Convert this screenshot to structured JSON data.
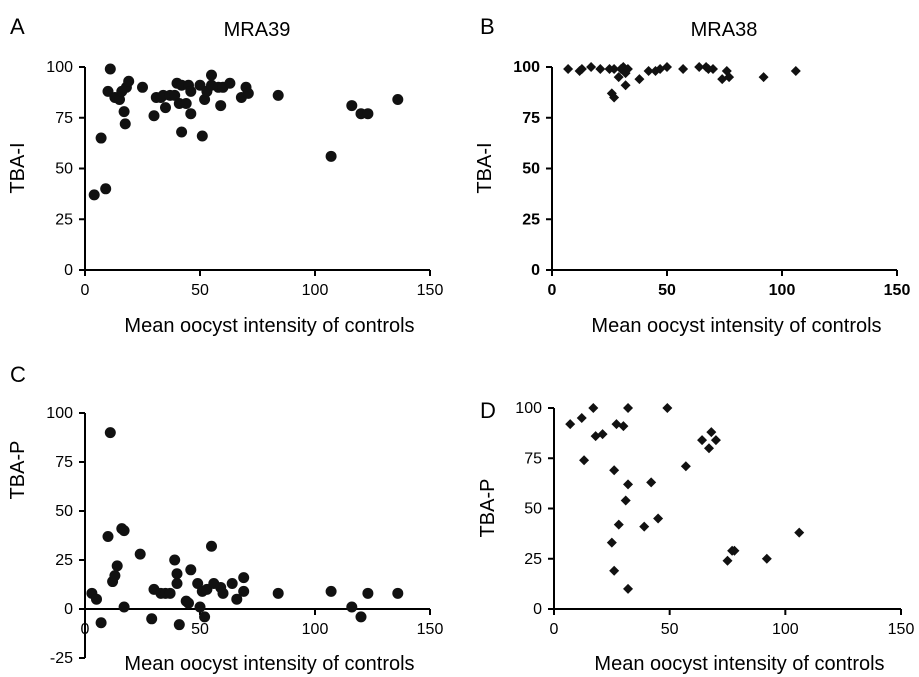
{
  "chart_data": [
    {
      "panel": "A",
      "title": "MRA39",
      "type": "scatter",
      "marker": "circle",
      "xlabel": "Mean oocyst intensity of controls",
      "ylabel": "TBA-I",
      "xlim": [
        0,
        150
      ],
      "ylim": [
        0,
        100
      ],
      "xticks": [
        0,
        50,
        100,
        150
      ],
      "yticks": [
        0,
        25,
        50,
        75,
        100
      ],
      "tick_bold": false,
      "points": [
        [
          4,
          37
        ],
        [
          7,
          65
        ],
        [
          9,
          40
        ],
        [
          10,
          88
        ],
        [
          11,
          99
        ],
        [
          13,
          85
        ],
        [
          15,
          84
        ],
        [
          16,
          88
        ],
        [
          17,
          78
        ],
        [
          17.5,
          72
        ],
        [
          18,
          90
        ],
        [
          19,
          93
        ],
        [
          25,
          90
        ],
        [
          30,
          76
        ],
        [
          31,
          85
        ],
        [
          33,
          85
        ],
        [
          34,
          86
        ],
        [
          35,
          80
        ],
        [
          37,
          86
        ],
        [
          39,
          86
        ],
        [
          40,
          92
        ],
        [
          41,
          82
        ],
        [
          42,
          91
        ],
        [
          42,
          68
        ],
        [
          44,
          82
        ],
        [
          45,
          91
        ],
        [
          46,
          77
        ],
        [
          46,
          88
        ],
        [
          50,
          91
        ],
        [
          51,
          66
        ],
        [
          52,
          84
        ],
        [
          53,
          88
        ],
        [
          55,
          91
        ],
        [
          55,
          96
        ],
        [
          58,
          90
        ],
        [
          59,
          81
        ],
        [
          60,
          90
        ],
        [
          63,
          92
        ],
        [
          68,
          85
        ],
        [
          70,
          90
        ],
        [
          71,
          87
        ],
        [
          84,
          86
        ],
        [
          107,
          56
        ],
        [
          116,
          81
        ],
        [
          120,
          77
        ],
        [
          123,
          77
        ],
        [
          136,
          84
        ]
      ]
    },
    {
      "panel": "B",
      "title": "MRA38",
      "type": "scatter",
      "marker": "diamond",
      "xlabel": "Mean oocyst intensity of controls",
      "ylabel": "TBA-I",
      "xlim": [
        0,
        150
      ],
      "ylim": [
        0,
        100
      ],
      "xticks": [
        0,
        50,
        100,
        150
      ],
      "yticks": [
        0,
        25,
        50,
        75,
        100
      ],
      "tick_bold": true,
      "points": [
        [
          7,
          99
        ],
        [
          12,
          98
        ],
        [
          13,
          99
        ],
        [
          17,
          100
        ],
        [
          21,
          99
        ],
        [
          25,
          99
        ],
        [
          26,
          87
        ],
        [
          27,
          85
        ],
        [
          27,
          99
        ],
        [
          29,
          95
        ],
        [
          30,
          99
        ],
        [
          31,
          100
        ],
        [
          32,
          97
        ],
        [
          32,
          91
        ],
        [
          33,
          99
        ],
        [
          38,
          94
        ],
        [
          42,
          98
        ],
        [
          45,
          98
        ],
        [
          47,
          99
        ],
        [
          50,
          100
        ],
        [
          57,
          99
        ],
        [
          64,
          100
        ],
        [
          67,
          100
        ],
        [
          68,
          99
        ],
        [
          70,
          99
        ],
        [
          74,
          94
        ],
        [
          76,
          98
        ],
        [
          77,
          95
        ],
        [
          92,
          95
        ],
        [
          106,
          98
        ]
      ]
    },
    {
      "panel": "C",
      "title": "",
      "type": "scatter",
      "marker": "circle",
      "xlabel": "Mean oocyst intensity of controls",
      "ylabel": "TBA-P",
      "xlim": [
        0,
        150
      ],
      "ylim": [
        -25,
        100
      ],
      "xticks": [
        0,
        50,
        100,
        150
      ],
      "yticks": [
        -25,
        0,
        25,
        50,
        75,
        100
      ],
      "tick_bold": false,
      "points": [
        [
          3,
          8
        ],
        [
          5,
          5
        ],
        [
          7,
          -7
        ],
        [
          10,
          37
        ],
        [
          11,
          90
        ],
        [
          12,
          14
        ],
        [
          13,
          17
        ],
        [
          14,
          22
        ],
        [
          16,
          41
        ],
        [
          17,
          40
        ],
        [
          17,
          1
        ],
        [
          24,
          28
        ],
        [
          29,
          -5
        ],
        [
          30,
          10
        ],
        [
          33,
          8
        ],
        [
          35,
          8
        ],
        [
          37,
          8
        ],
        [
          39,
          25
        ],
        [
          40,
          18
        ],
        [
          40,
          13
        ],
        [
          41,
          -8
        ],
        [
          44,
          4
        ],
        [
          45,
          3
        ],
        [
          46,
          20
        ],
        [
          49,
          13
        ],
        [
          50,
          1
        ],
        [
          51,
          9
        ],
        [
          52,
          -4
        ],
        [
          53,
          10
        ],
        [
          55,
          32
        ],
        [
          56,
          13
        ],
        [
          59,
          11
        ],
        [
          60,
          8
        ],
        [
          64,
          13
        ],
        [
          66,
          5
        ],
        [
          69,
          16
        ],
        [
          69,
          9
        ],
        [
          84,
          8
        ],
        [
          107,
          9
        ],
        [
          116,
          1
        ],
        [
          120,
          -4
        ],
        [
          123,
          8
        ],
        [
          136,
          8
        ]
      ]
    },
    {
      "panel": "D",
      "title": "",
      "type": "scatter",
      "marker": "diamond",
      "xlabel": "Mean oocyst intensity of controls",
      "ylabel": "TBA-P",
      "xlim": [
        0,
        150
      ],
      "ylim": [
        0,
        100
      ],
      "xticks": [
        0,
        50,
        100,
        150
      ],
      "yticks": [
        0,
        25,
        50,
        75,
        100
      ],
      "tick_bold": false,
      "points": [
        [
          7,
          92
        ],
        [
          12,
          95
        ],
        [
          13,
          74
        ],
        [
          17,
          100
        ],
        [
          18,
          86
        ],
        [
          21,
          87
        ],
        [
          25,
          33
        ],
        [
          26,
          69
        ],
        [
          26,
          19
        ],
        [
          27,
          92
        ],
        [
          28,
          42
        ],
        [
          30,
          91
        ],
        [
          31,
          54
        ],
        [
          32,
          62
        ],
        [
          32,
          100
        ],
        [
          32,
          10
        ],
        [
          39,
          41
        ],
        [
          42,
          63
        ],
        [
          45,
          45
        ],
        [
          49,
          100
        ],
        [
          57,
          71
        ],
        [
          64,
          84
        ],
        [
          67,
          80
        ],
        [
          68,
          88
        ],
        [
          70,
          84
        ],
        [
          75,
          24
        ],
        [
          77,
          29
        ],
        [
          78,
          29
        ],
        [
          92,
          25
        ],
        [
          106,
          38
        ]
      ]
    }
  ]
}
